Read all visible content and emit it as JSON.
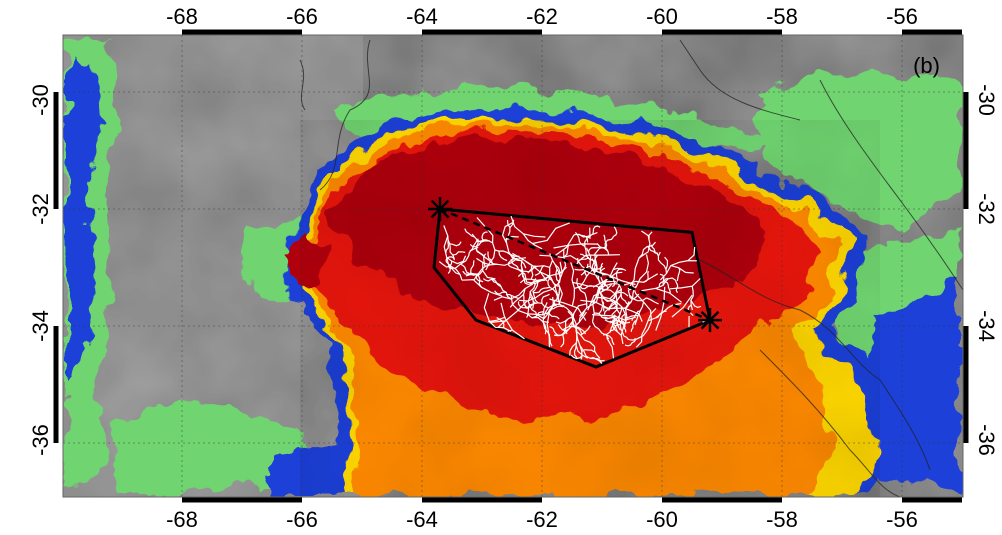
{
  "figure": {
    "panel_label": "(b)",
    "x_ticks": [
      "-68",
      "-66",
      "-64",
      "-62",
      "-60",
      "-58",
      "-56"
    ],
    "y_ticks_left": [
      "-30",
      "-32",
      "-34",
      "-36"
    ],
    "y_ticks_right": [
      "-30",
      "-32",
      "-34",
      "-36"
    ],
    "lon_range": [
      -70,
      -55
    ],
    "lat_range": [
      -37,
      -29.5
    ],
    "gridlines": true,
    "colors": {
      "clear_sky": "#9a9a9a",
      "cloud_green": "#6fd46f",
      "cloud_blue": "#1f3fd8",
      "storm_yellow": "#ffd800",
      "storm_orange": "#ff8a00",
      "storm_red": "#e8120a",
      "storm_core": "#b00010",
      "lightning": "#ffffff",
      "outline": "#000000"
    },
    "markers": [
      {
        "name": "start-marker",
        "lon": -63.7,
        "lat": -32.0
      },
      {
        "name": "end-marker",
        "lon": -59.2,
        "lat": -33.9
      }
    ],
    "flash_polygon_lonlat": [
      [
        -63.7,
        -32.0
      ],
      [
        -59.5,
        -32.4
      ],
      [
        -59.2,
        -33.9
      ],
      [
        -61.1,
        -34.7
      ],
      [
        -63.1,
        -33.9
      ],
      [
        -63.8,
        -33.0
      ]
    ]
  }
}
